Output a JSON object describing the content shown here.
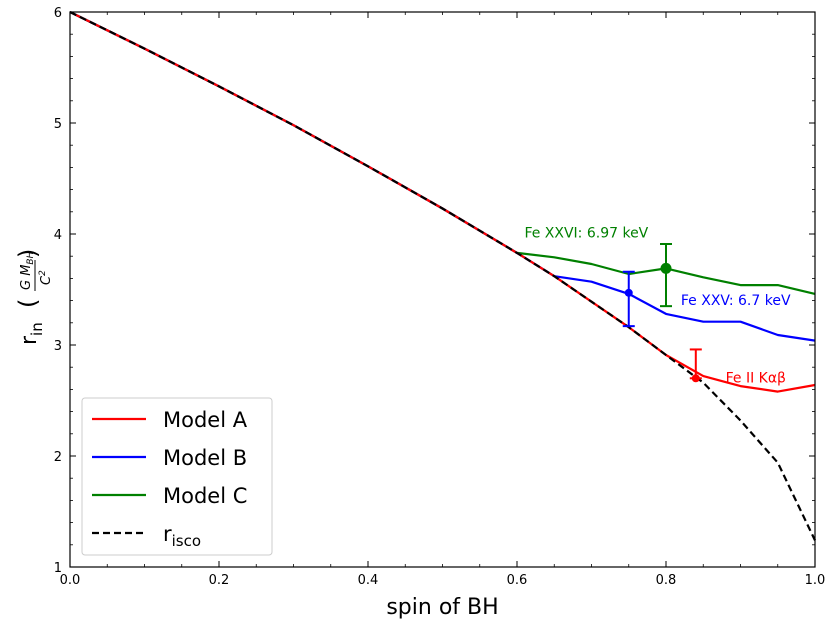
{
  "chart_data": {
    "type": "line",
    "xlabel": "spin of BH",
    "ylabel": {
      "main": "r",
      "sub": "in"
    },
    "xlim": [
      0.0,
      1.0
    ],
    "ylim": [
      1,
      6
    ],
    "xticks": [
      0.0,
      0.2,
      0.4,
      0.6,
      0.8,
      1.0
    ],
    "yticks": [
      1,
      2,
      3,
      4,
      5,
      6
    ],
    "xtick_labels": [
      "0.0",
      "0.2",
      "0.4",
      "0.6",
      "0.8",
      "1.0"
    ],
    "ytick_labels": [
      "1",
      "2",
      "3",
      "4",
      "5",
      "6"
    ],
    "legend_position": "bottom-left",
    "series": [
      {
        "name": "Model A",
        "color": "#ff0000",
        "style": "solid",
        "x": [
          0.0,
          0.1,
          0.2,
          0.3,
          0.4,
          0.5,
          0.6,
          0.65,
          0.7,
          0.75,
          0.8,
          0.85,
          0.9,
          0.95,
          1.0
        ],
        "y": [
          6.0,
          5.67,
          5.33,
          4.98,
          4.61,
          4.23,
          3.83,
          3.62,
          3.39,
          3.16,
          2.91,
          2.72,
          2.63,
          2.58,
          2.64
        ]
      },
      {
        "name": "Model B",
        "color": "#0000ff",
        "style": "solid",
        "x": [
          0.0,
          0.1,
          0.2,
          0.3,
          0.4,
          0.5,
          0.6,
          0.65,
          0.7,
          0.75,
          0.8,
          0.85,
          0.9,
          0.95,
          1.0
        ],
        "y": [
          6.0,
          5.67,
          5.33,
          4.98,
          4.61,
          4.23,
          3.83,
          3.62,
          3.57,
          3.46,
          3.28,
          3.21,
          3.21,
          3.09,
          3.04
        ]
      },
      {
        "name": "Model C",
        "color": "#008000",
        "style": "solid",
        "x": [
          0.0,
          0.1,
          0.2,
          0.3,
          0.4,
          0.5,
          0.6,
          0.65,
          0.7,
          0.75,
          0.8,
          0.85,
          0.9,
          0.95,
          1.0
        ],
        "y": [
          6.0,
          5.67,
          5.33,
          4.98,
          4.61,
          4.23,
          3.83,
          3.79,
          3.73,
          3.64,
          3.69,
          3.61,
          3.54,
          3.54,
          3.46
        ]
      },
      {
        "name": "isco",
        "color": "#000000",
        "style": "dashed",
        "x": [
          0.0,
          0.1,
          0.2,
          0.3,
          0.4,
          0.5,
          0.6,
          0.65,
          0.7,
          0.75,
          0.8,
          0.85,
          0.9,
          0.95,
          1.0
        ],
        "y": [
          6.0,
          5.67,
          5.33,
          4.98,
          4.61,
          4.23,
          3.83,
          3.62,
          3.39,
          3.16,
          2.91,
          2.66,
          2.32,
          1.94,
          1.24
        ]
      }
    ],
    "error_points": [
      {
        "label": "Fe XXVI: 6.97 keV",
        "color": "#008000",
        "x": 0.8,
        "y": 3.69,
        "yerr_low": 3.35,
        "yerr_high": 3.91,
        "marker_size": "large",
        "label_x": 0.61,
        "label_y": 3.97
      },
      {
        "label": "Fe XXV: 6.7 keV",
        "color": "#0000ff",
        "x": 0.75,
        "y": 3.47,
        "yerr_low": 3.17,
        "yerr_high": 3.66,
        "marker_size": "small",
        "label_x": 0.82,
        "label_y": 3.36
      },
      {
        "label": "Fe II Kαβ",
        "color": "#ff0000",
        "x": 0.84,
        "y": 2.7,
        "yerr_low": 2.7,
        "yerr_high": 2.96,
        "marker_size": "small",
        "label_x": 0.88,
        "label_y": 2.66
      }
    ],
    "legend_entries": [
      {
        "label": "Model A",
        "color": "#ff0000",
        "style": "solid"
      },
      {
        "label": "Model B",
        "color": "#0000ff",
        "style": "solid"
      },
      {
        "label": "Model C",
        "color": "#008000",
        "style": "solid"
      },
      {
        "label": "r",
        "sub": "isco",
        "color": "#000000",
        "style": "dashed"
      }
    ]
  }
}
